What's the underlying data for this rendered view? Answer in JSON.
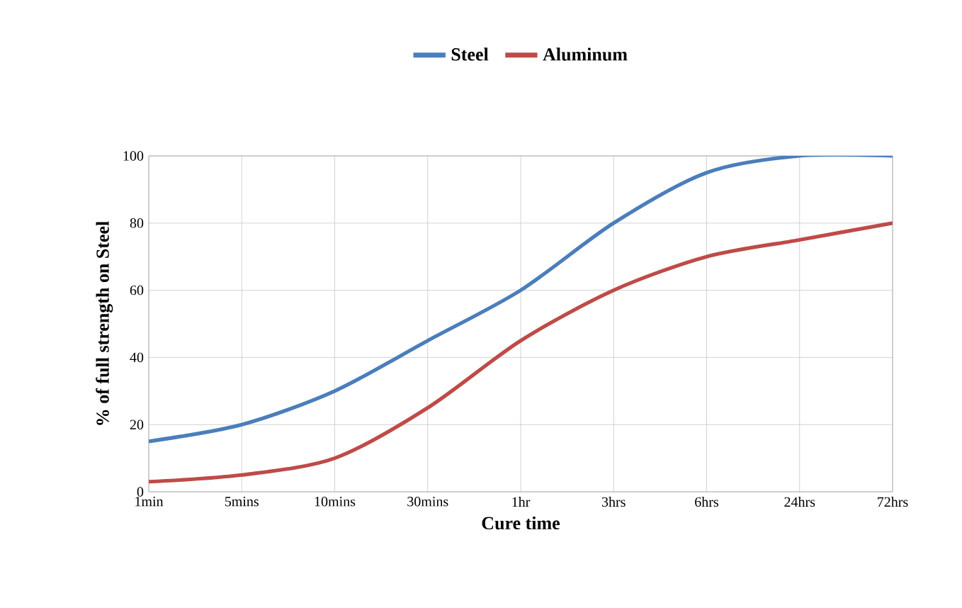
{
  "chart_data": {
    "type": "line",
    "xlabel": "Cure time",
    "ylabel": "% of full strength on Steel",
    "categories": [
      "1min",
      "5mins",
      "10mins",
      "30mins",
      "1hr",
      "3hrs",
      "6hrs",
      "24hrs",
      "72hrs"
    ],
    "series": [
      {
        "name": "Steel",
        "color": "#4a7ebb",
        "values": [
          15,
          20,
          30,
          45,
          60,
          80,
          95,
          100,
          100
        ]
      },
      {
        "name": "Aluminum",
        "color": "#be4b48",
        "values": [
          3,
          5,
          10,
          25,
          45,
          60,
          70,
          75,
          80
        ]
      }
    ],
    "ylim": [
      0,
      100
    ],
    "yticks": [
      0,
      20,
      40,
      60,
      80,
      100
    ],
    "grid": true,
    "legend": "top",
    "marker": "none",
    "line_style": "solid"
  }
}
